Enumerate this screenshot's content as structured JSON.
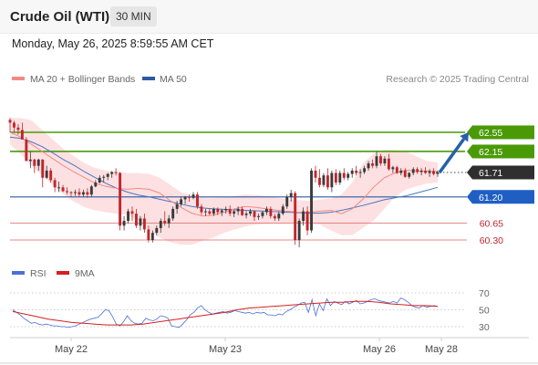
{
  "header": {
    "title": "Crude Oil (WTI)",
    "timeframe": "30 MIN"
  },
  "datetime": "Monday, May 26, 2025 8:59:55 AM CET",
  "legend": {
    "ma20_label": "MA 20 + Bollinger Bands",
    "ma50_label": "MA 50",
    "credit": "Research © 2025 Trading Central",
    "rsi_label": "RSI",
    "ma9_label": "9MA"
  },
  "colors": {
    "up": "#3a3a3a",
    "down": "#c0262d",
    "band_fill": "#fde0e2",
    "ma20": "#f28b82",
    "ma50": "#4a76c2",
    "resistance": "#4a9a07",
    "support_line": "#2c5aa0",
    "target": "#e06363",
    "pivot_bg": "#2f2f2f",
    "support_bg": "#1f5fc4",
    "arrow": "#2760a8",
    "rsi": "#4b6fd6",
    "rsi_ma": "#d42020"
  },
  "chart_data": [
    {
      "type": "candlestick",
      "title": "Crude Oil (WTI)",
      "interval": "30 MIN",
      "ylim": [
        60.0,
        63.1
      ],
      "x_ticks": [
        "May 22",
        "May 23",
        "May 26",
        "May 28"
      ],
      "series_ohlc": [
        [
          62.81,
          62.85,
          62.55,
          62.75
        ],
        [
          62.75,
          62.79,
          62.55,
          62.65
        ],
        [
          62.65,
          62.72,
          62.5,
          62.6
        ],
        [
          62.6,
          62.75,
          62.42,
          62.4
        ],
        [
          62.4,
          62.45,
          62.05,
          61.95
        ],
        [
          61.95,
          62.15,
          61.8,
          61.98
        ],
        [
          61.98,
          62.0,
          61.7,
          61.85
        ],
        [
          61.85,
          62.0,
          61.75,
          61.98
        ],
        [
          61.98,
          61.99,
          61.4,
          61.6
        ],
        [
          61.6,
          61.85,
          61.58,
          61.75
        ],
        [
          61.75,
          61.8,
          61.5,
          61.55
        ],
        [
          61.55,
          61.6,
          61.3,
          61.4
        ],
        [
          61.4,
          61.52,
          61.3,
          61.4
        ],
        [
          61.4,
          61.45,
          61.3,
          61.32
        ],
        [
          61.32,
          61.4,
          61.25,
          61.3
        ],
        [
          61.3,
          61.32,
          61.2,
          61.28
        ],
        [
          61.28,
          61.35,
          61.22,
          61.3
        ],
        [
          61.3,
          61.38,
          61.2,
          61.25
        ],
        [
          61.25,
          61.35,
          61.2,
          61.3
        ],
        [
          61.3,
          61.38,
          61.18,
          61.25
        ],
        [
          61.25,
          61.45,
          61.2,
          61.42
        ],
        [
          61.42,
          61.55,
          61.4,
          61.5
        ],
        [
          61.5,
          61.65,
          61.48,
          61.6
        ],
        [
          61.6,
          61.66,
          61.5,
          61.62
        ],
        [
          61.62,
          61.7,
          61.55,
          61.68
        ],
        [
          61.68,
          61.74,
          61.6,
          61.72
        ],
        [
          61.72,
          61.8,
          61.65,
          61.7
        ],
        [
          61.7,
          61.72,
          60.5,
          60.6
        ],
        [
          60.6,
          60.8,
          60.5,
          60.7
        ],
        [
          60.7,
          60.95,
          60.65,
          60.9
        ],
        [
          60.9,
          61.0,
          60.7,
          60.85
        ],
        [
          60.85,
          60.95,
          60.55,
          60.6
        ],
        [
          60.6,
          60.8,
          60.5,
          60.75
        ],
        [
          60.75,
          60.85,
          60.45,
          60.52
        ],
        [
          60.52,
          60.6,
          60.25,
          60.3
        ],
        [
          60.3,
          60.5,
          60.25,
          60.45
        ],
        [
          60.45,
          60.6,
          60.4,
          60.55
        ],
        [
          60.55,
          60.75,
          60.45,
          60.7
        ],
        [
          60.7,
          60.9,
          60.6,
          60.65
        ],
        [
          60.65,
          60.82,
          60.55,
          60.75
        ],
        [
          60.75,
          61.0,
          60.7,
          60.95
        ],
        [
          60.95,
          61.12,
          60.85,
          61.05
        ],
        [
          61.05,
          61.2,
          61.0,
          61.15
        ],
        [
          61.15,
          61.22,
          61.05,
          61.2
        ],
        [
          61.2,
          61.25,
          61.1,
          61.18
        ],
        [
          61.18,
          61.3,
          61.15,
          61.25
        ],
        [
          61.25,
          61.3,
          60.95,
          61.0
        ],
        [
          61.0,
          61.05,
          60.82,
          60.88
        ],
        [
          60.88,
          60.95,
          60.8,
          60.9
        ],
        [
          60.9,
          60.95,
          60.82,
          60.85
        ],
        [
          60.85,
          60.98,
          60.8,
          60.95
        ],
        [
          60.95,
          60.98,
          60.82,
          60.88
        ],
        [
          60.88,
          60.95,
          60.8,
          60.92
        ],
        [
          60.92,
          61.0,
          60.85,
          60.95
        ],
        [
          60.95,
          61.02,
          60.8,
          60.85
        ],
        [
          60.85,
          60.92,
          60.78,
          60.9
        ],
        [
          60.9,
          61.0,
          60.82,
          60.95
        ],
        [
          60.95,
          61.0,
          60.8,
          60.82
        ],
        [
          60.82,
          60.9,
          60.75,
          60.85
        ],
        [
          60.85,
          60.95,
          60.8,
          60.9
        ],
        [
          60.9,
          60.92,
          60.7,
          60.78
        ],
        [
          60.78,
          60.85,
          60.72,
          60.8
        ],
        [
          60.8,
          60.9,
          60.75,
          60.88
        ],
        [
          60.88,
          61.0,
          60.82,
          60.95
        ],
        [
          60.95,
          61.0,
          60.75,
          60.8
        ],
        [
          60.8,
          60.85,
          60.7,
          60.75
        ],
        [
          60.75,
          60.9,
          60.7,
          60.85
        ],
        [
          60.85,
          61.05,
          60.82,
          61.0
        ],
        [
          61.0,
          61.25,
          60.95,
          61.2
        ],
        [
          61.2,
          61.35,
          61.1,
          61.28
        ],
        [
          61.28,
          61.32,
          60.2,
          60.3
        ],
        [
          60.3,
          60.75,
          60.15,
          60.7
        ],
        [
          60.7,
          60.98,
          60.6,
          60.9
        ],
        [
          60.9,
          61.0,
          60.4,
          60.5
        ],
        [
          60.5,
          61.8,
          60.45,
          61.75
        ],
        [
          61.75,
          61.85,
          61.5,
          61.6
        ],
        [
          61.6,
          61.78,
          61.4,
          61.45
        ],
        [
          61.45,
          61.7,
          61.4,
          61.65
        ],
        [
          61.65,
          61.8,
          61.35,
          61.4
        ],
        [
          61.4,
          61.75,
          61.3,
          61.7
        ],
        [
          61.7,
          61.78,
          61.45,
          61.5
        ],
        [
          61.5,
          61.75,
          61.45,
          61.7
        ],
        [
          61.7,
          61.8,
          61.55,
          61.6
        ],
        [
          61.6,
          61.72,
          61.55,
          61.68
        ],
        [
          61.68,
          61.8,
          61.6,
          61.75
        ],
        [
          61.75,
          61.85,
          61.65,
          61.7
        ],
        [
          61.7,
          61.78,
          61.6,
          61.72
        ],
        [
          61.72,
          61.85,
          61.68,
          61.8
        ],
        [
          61.8,
          61.95,
          61.75,
          61.9
        ],
        [
          61.9,
          61.98,
          61.8,
          61.85
        ],
        [
          61.85,
          62.15,
          61.8,
          62.05
        ],
        [
          62.05,
          62.1,
          61.85,
          61.9
        ],
        [
          61.9,
          62.05,
          61.85,
          62.0
        ],
        [
          62.0,
          62.1,
          61.75,
          61.78
        ],
        [
          61.78,
          61.85,
          61.7,
          61.82
        ],
        [
          61.82,
          61.85,
          61.68,
          61.7
        ],
        [
          61.7,
          61.8,
          61.65,
          61.75
        ],
        [
          61.75,
          61.8,
          61.6,
          61.62
        ],
        [
          61.62,
          61.72,
          61.58,
          61.7
        ],
        [
          61.7,
          61.82,
          61.65,
          61.78
        ],
        [
          61.78,
          61.82,
          61.68,
          61.72
        ],
        [
          61.72,
          61.8,
          61.65,
          61.75
        ],
        [
          61.75,
          61.82,
          61.68,
          61.7
        ],
        [
          61.7,
          61.78,
          61.62,
          61.74
        ],
        [
          61.74,
          61.8,
          61.65,
          61.68
        ],
        [
          61.68,
          61.75,
          61.62,
          61.71
        ]
      ],
      "ma20": [
        62.55,
        62.45,
        62.3,
        62.15,
        62.0,
        61.85,
        61.72,
        61.6,
        61.48,
        61.42,
        61.38,
        61.36,
        61.38,
        61.36,
        61.28,
        61.12,
        60.98,
        60.86,
        60.8,
        60.82,
        60.88,
        60.95,
        61.0,
        60.98,
        60.95,
        60.92,
        60.9,
        60.88,
        60.88,
        60.9,
        60.92,
        60.85,
        60.95,
        61.15,
        61.4,
        61.6,
        61.7,
        61.76,
        61.74,
        61.74,
        61.73
      ],
      "ma50": [
        62.45,
        62.42,
        62.35,
        62.25,
        62.12,
        61.98,
        61.86,
        61.72,
        61.6,
        61.48,
        61.38,
        61.3,
        61.24,
        61.2,
        61.15,
        61.1,
        61.05,
        61.0,
        60.97,
        60.95,
        60.94,
        60.93,
        60.92,
        60.91,
        60.9,
        60.89,
        60.88,
        60.87,
        60.86,
        60.86,
        60.88,
        60.92,
        60.97,
        61.02,
        61.08,
        61.14,
        61.18,
        61.22,
        61.28,
        61.34,
        61.4
      ],
      "bb_upper": [
        62.85,
        62.85,
        62.8,
        62.6,
        62.4,
        62.2,
        62.05,
        61.9,
        61.8,
        61.75,
        61.72,
        61.7,
        61.7,
        61.68,
        61.6,
        61.45,
        61.3,
        61.22,
        61.18,
        61.18,
        61.2,
        61.22,
        61.25,
        61.24,
        61.22,
        61.18,
        61.15,
        61.13,
        61.12,
        61.14,
        61.17,
        61.25,
        61.5,
        61.9,
        62.1,
        62.18,
        62.18,
        62.15,
        62.05,
        61.95,
        61.92
      ],
      "bb_lower": [
        62.3,
        62.1,
        61.85,
        61.65,
        61.45,
        61.25,
        61.1,
        60.98,
        60.92,
        60.88,
        60.85,
        60.82,
        60.7,
        60.5,
        60.35,
        60.25,
        60.2,
        60.2,
        60.28,
        60.35,
        60.45,
        60.52,
        60.58,
        60.62,
        60.64,
        60.65,
        60.66,
        60.66,
        60.66,
        60.62,
        60.5,
        60.4,
        60.4,
        60.55,
        60.7,
        60.95,
        61.2,
        61.35,
        61.42,
        61.48,
        61.5
      ],
      "levels": [
        {
          "label": "62.55",
          "value": 62.55,
          "kind": "resistance"
        },
        {
          "label": "62.15",
          "value": 62.15,
          "kind": "resistance"
        },
        {
          "label": "61.71",
          "value": 61.71,
          "kind": "pivot"
        },
        {
          "label": "61.20",
          "value": 61.2,
          "kind": "support"
        },
        {
          "label": "60.65",
          "value": 60.65,
          "kind": "target"
        },
        {
          "label": "60.30",
          "value": 60.3,
          "kind": "target"
        }
      ],
      "series_names": [
        "MA 20 + Bollinger Bands",
        "MA 50"
      ],
      "legend_position": "top-left"
    },
    {
      "type": "line",
      "series_names": [
        "RSI",
        "9MA"
      ],
      "ylim": [
        20,
        80
      ],
      "y_ticks": [
        "70",
        "50",
        "30"
      ],
      "rsi": [
        50,
        47,
        44,
        40,
        37,
        34,
        35,
        33,
        32,
        33,
        32,
        31,
        31,
        30,
        30,
        29,
        30,
        31,
        33,
        35,
        37,
        39,
        40,
        41,
        45,
        50,
        49,
        42,
        33,
        31,
        36,
        43,
        37,
        34,
        33,
        34,
        40,
        38,
        37,
        39,
        43,
        42,
        40,
        31,
        30,
        29,
        33,
        38,
        44,
        47,
        52,
        55,
        50,
        47,
        45,
        46,
        47,
        48,
        46,
        47,
        49,
        48,
        47,
        46,
        47,
        45,
        47,
        46,
        47,
        44,
        44,
        43,
        45,
        44,
        48,
        50,
        53,
        55,
        58,
        59,
        47,
        62,
        43,
        57,
        49,
        63,
        55,
        60,
        58,
        56,
        60,
        57,
        59,
        61,
        57,
        58,
        60,
        62,
        63,
        61,
        60,
        59,
        58,
        60,
        58,
        64,
        62,
        59,
        55,
        53,
        52,
        55,
        53,
        54,
        55,
        54
      ],
      "rsi_ma": [
        48,
        45,
        42,
        39,
        37,
        35,
        34,
        33,
        32,
        32,
        32,
        33,
        35,
        37,
        39,
        41,
        43,
        45,
        47,
        50,
        52,
        53,
        54,
        55,
        56,
        57,
        58,
        59,
        59,
        60,
        60,
        59,
        57,
        56,
        55,
        55,
        54
      ],
      "reference_lines": [
        70,
        50,
        30
      ]
    }
  ]
}
